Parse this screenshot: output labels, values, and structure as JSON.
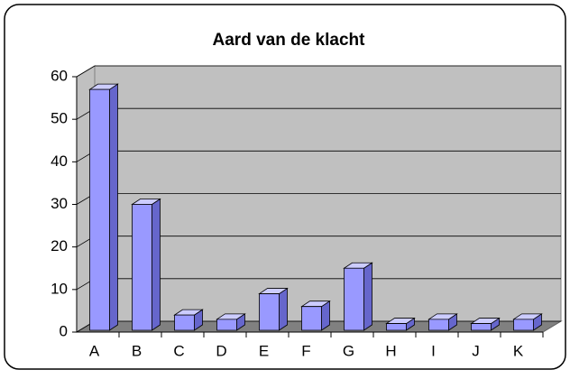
{
  "chart_data": {
    "type": "bar3d",
    "title": "Aard van de klacht",
    "categories": [
      "A",
      "B",
      "C",
      "D",
      "E",
      "F",
      "G",
      "H",
      "I",
      "J",
      "K"
    ],
    "values": [
      57,
      30,
      4,
      3,
      9,
      6,
      15,
      2,
      3,
      2,
      3
    ],
    "color": "#9999ff",
    "ylim": [
      0,
      60
    ],
    "yticks": [
      0,
      10,
      20,
      30,
      40,
      50,
      60
    ],
    "grid": true
  }
}
